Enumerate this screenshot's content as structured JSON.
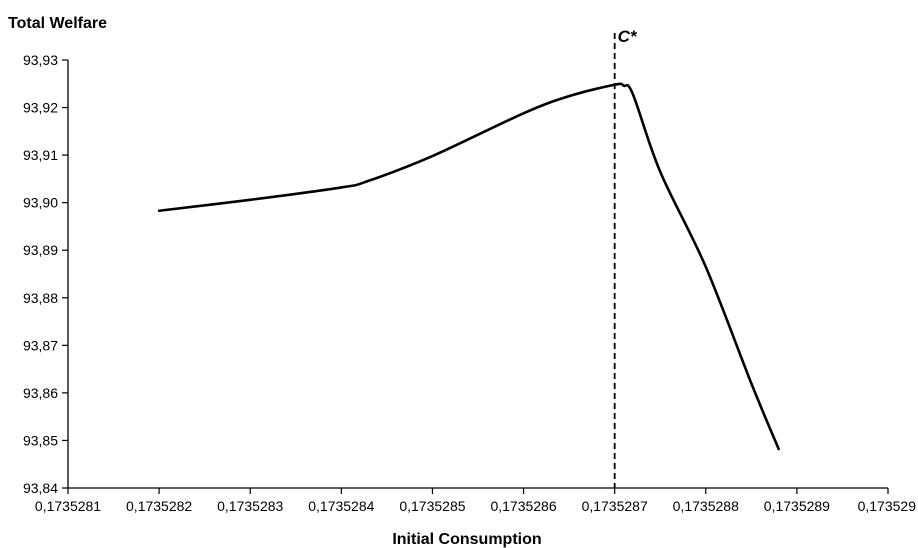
{
  "chart_data": {
    "type": "line",
    "ylabel": "Total Welfare",
    "xlabel": "Initial Consumption",
    "xlim": [
      0.1735281,
      0.173529
    ],
    "ylim": [
      93.84,
      93.93
    ],
    "x_ticks": [
      0.1735281,
      0.1735282,
      0.1735283,
      0.1735284,
      0.1735285,
      0.1735286,
      0.1735287,
      0.1735288,
      0.1735289,
      0.173529
    ],
    "x_tick_labels": [
      "0,1735281",
      "0,1735282",
      "0,1735283",
      "0,1735284",
      "0,1735285",
      "0,1735286",
      "0,1735287",
      "0,1735288",
      "0,1735289",
      "0,173529"
    ],
    "y_ticks": [
      93.84,
      93.85,
      93.86,
      93.87,
      93.88,
      93.89,
      93.9,
      93.91,
      93.92,
      93.93
    ],
    "y_tick_labels": [
      "93,84",
      "93,85",
      "93,86",
      "93,87",
      "93,88",
      "93,89",
      "93,90",
      "93,91",
      "93,92",
      "93,93"
    ],
    "grid": false,
    "legend": "none",
    "series": [
      {
        "color": "#000000",
        "x": [
          0.1735282,
          0.1735283,
          0.1735284,
          0.17352843,
          0.1735285,
          0.1735286,
          0.17352865,
          0.1735287,
          0.17352871,
          0.17352872,
          0.17352875,
          0.1735288,
          0.17352885,
          0.17352888
        ],
        "y": [
          93.8983,
          93.9006,
          93.9032,
          93.9046,
          93.9098,
          93.9188,
          93.9224,
          93.9248,
          93.9246,
          93.9228,
          93.9065,
          93.8865,
          93.862,
          93.8482
        ]
      }
    ],
    "annotations": [
      {
        "label": "C*",
        "x": 0.1735287,
        "style": "dashed-vertical-line"
      }
    ]
  }
}
